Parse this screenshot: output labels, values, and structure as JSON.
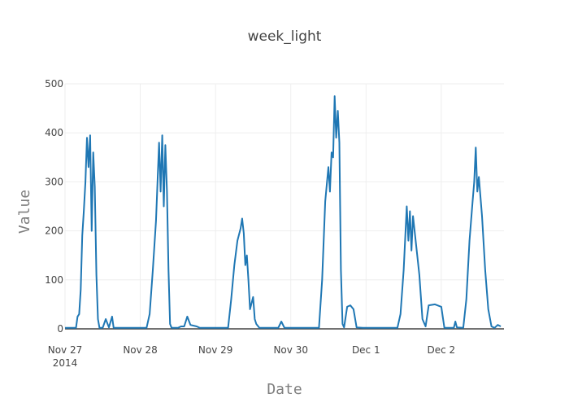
{
  "chart_data": {
    "type": "line",
    "title": "week_light",
    "xlabel": "Date",
    "ylabel": "Value",
    "x_range": [
      "2014-11-27",
      "2014-12-02T20:00"
    ],
    "ylim": [
      0,
      500
    ],
    "x_ticks": [
      {
        "label": "Nov 27",
        "sublabel": "2014",
        "date": "2014-11-27"
      },
      {
        "label": "Nov 28",
        "date": "2014-11-28"
      },
      {
        "label": "Nov 29",
        "date": "2014-11-29"
      },
      {
        "label": "Nov 30",
        "date": "2014-11-30"
      },
      {
        "label": "Dec 1",
        "date": "2014-12-01"
      },
      {
        "label": "Dec 2",
        "date": "2014-12-02"
      }
    ],
    "y_ticks": [
      0,
      100,
      200,
      300,
      400,
      500
    ],
    "grid": true,
    "series_color": "#1f77b4",
    "series": [
      {
        "name": "",
        "points": [
          [
            "2014-11-27T00:00",
            2
          ],
          [
            "2014-11-27T03:30",
            2
          ],
          [
            "2014-11-27T04:00",
            25
          ],
          [
            "2014-11-27T04:30",
            30
          ],
          [
            "2014-11-27T05:00",
            80
          ],
          [
            "2014-11-27T05:30",
            190
          ],
          [
            "2014-11-27T06:00",
            240
          ],
          [
            "2014-11-27T06:30",
            300
          ],
          [
            "2014-11-27T07:00",
            390
          ],
          [
            "2014-11-27T07:30",
            330
          ],
          [
            "2014-11-27T08:00",
            395
          ],
          [
            "2014-11-27T08:30",
            200
          ],
          [
            "2014-11-27T09:00",
            360
          ],
          [
            "2014-11-27T09:30",
            290
          ],
          [
            "2014-11-27T10:00",
            110
          ],
          [
            "2014-11-27T10:30",
            20
          ],
          [
            "2014-11-27T11:00",
            2
          ],
          [
            "2014-11-27T12:00",
            2
          ],
          [
            "2014-11-27T13:00",
            20
          ],
          [
            "2014-11-27T14:00",
            3
          ],
          [
            "2014-11-27T15:00",
            25
          ],
          [
            "2014-11-27T15:30",
            2
          ],
          [
            "2014-11-28T02:00",
            2
          ],
          [
            "2014-11-28T03:00",
            30
          ],
          [
            "2014-11-28T04:00",
            120
          ],
          [
            "2014-11-28T05:00",
            220
          ],
          [
            "2014-11-28T06:00",
            380
          ],
          [
            "2014-11-28T06:30",
            280
          ],
          [
            "2014-11-28T07:00",
            395
          ],
          [
            "2014-11-28T07:30",
            250
          ],
          [
            "2014-11-28T08:00",
            375
          ],
          [
            "2014-11-28T08:30",
            280
          ],
          [
            "2014-11-28T09:00",
            120
          ],
          [
            "2014-11-28T09:30",
            10
          ],
          [
            "2014-11-28T10:00",
            2
          ],
          [
            "2014-11-28T12:00",
            2
          ],
          [
            "2014-11-28T13:00",
            5
          ],
          [
            "2014-11-28T14:00",
            5
          ],
          [
            "2014-11-28T15:00",
            25
          ],
          [
            "2014-11-28T16:00",
            8
          ],
          [
            "2014-11-28T18:00",
            5
          ],
          [
            "2014-11-28T19:00",
            2
          ],
          [
            "2014-11-29T04:00",
            2
          ],
          [
            "2014-11-29T05:00",
            60
          ],
          [
            "2014-11-29T06:00",
            130
          ],
          [
            "2014-11-29T07:00",
            180
          ],
          [
            "2014-11-29T08:00",
            205
          ],
          [
            "2014-11-29T08:30",
            225
          ],
          [
            "2014-11-29T09:00",
            195
          ],
          [
            "2014-11-29T09:30",
            130
          ],
          [
            "2014-11-29T10:00",
            150
          ],
          [
            "2014-11-29T10:30",
            100
          ],
          [
            "2014-11-29T11:00",
            40
          ],
          [
            "2014-11-29T12:00",
            65
          ],
          [
            "2014-11-29T12:30",
            20
          ],
          [
            "2014-11-29T13:00",
            10
          ],
          [
            "2014-11-29T14:00",
            2
          ],
          [
            "2014-11-29T15:00",
            2
          ],
          [
            "2014-11-29T20:00",
            2
          ],
          [
            "2014-11-29T21:00",
            15
          ],
          [
            "2014-11-29T22:00",
            2
          ],
          [
            "2014-11-30T09:00",
            2
          ],
          [
            "2014-11-30T10:00",
            100
          ],
          [
            "2014-11-30T11:00",
            260
          ],
          [
            "2014-11-30T12:00",
            330
          ],
          [
            "2014-11-30T12:30",
            280
          ],
          [
            "2014-11-30T13:00",
            360
          ],
          [
            "2014-11-30T13:30",
            350
          ],
          [
            "2014-11-30T14:00",
            475
          ],
          [
            "2014-11-30T14:30",
            390
          ],
          [
            "2014-11-30T15:00",
            445
          ],
          [
            "2014-11-30T15:30",
            380
          ],
          [
            "2014-11-30T16:00",
            120
          ],
          [
            "2014-11-30T16:30",
            10
          ],
          [
            "2014-11-30T17:00",
            3
          ],
          [
            "2014-11-30T18:00",
            45
          ],
          [
            "2014-11-30T19:00",
            48
          ],
          [
            "2014-11-30T20:00",
            40
          ],
          [
            "2014-11-30T21:00",
            3
          ],
          [
            "2014-11-30T23:00",
            2
          ],
          [
            "2014-12-01T10:00",
            2
          ],
          [
            "2014-12-01T11:00",
            30
          ],
          [
            "2014-12-01T12:00",
            120
          ],
          [
            "2014-12-01T13:00",
            250
          ],
          [
            "2014-12-01T13:30",
            180
          ],
          [
            "2014-12-01T14:00",
            240
          ],
          [
            "2014-12-01T14:30",
            160
          ],
          [
            "2014-12-01T15:00",
            230
          ],
          [
            "2014-12-01T16:00",
            170
          ],
          [
            "2014-12-01T17:00",
            110
          ],
          [
            "2014-12-01T18:00",
            20
          ],
          [
            "2014-12-01T19:00",
            5
          ],
          [
            "2014-12-01T20:00",
            48
          ],
          [
            "2014-12-01T22:00",
            50
          ],
          [
            "2014-12-02T00:00",
            45
          ],
          [
            "2014-12-02T01:00",
            2
          ],
          [
            "2014-12-02T04:00",
            2
          ],
          [
            "2014-12-02T04:30",
            15
          ],
          [
            "2014-12-02T05:00",
            3
          ],
          [
            "2014-12-02T07:00",
            2
          ],
          [
            "2014-12-02T08:00",
            60
          ],
          [
            "2014-12-02T09:00",
            180
          ],
          [
            "2014-12-02T10:00",
            260
          ],
          [
            "2014-12-02T10:30",
            300
          ],
          [
            "2014-12-02T11:00",
            370
          ],
          [
            "2014-12-02T11:30",
            280
          ],
          [
            "2014-12-02T12:00",
            310
          ],
          [
            "2014-12-02T13:00",
            230
          ],
          [
            "2014-12-02T14:00",
            120
          ],
          [
            "2014-12-02T15:00",
            40
          ],
          [
            "2014-12-02T16:00",
            5
          ],
          [
            "2014-12-02T17:00",
            2
          ],
          [
            "2014-12-02T18:00",
            8
          ],
          [
            "2014-12-02T19:00",
            5
          ]
        ]
      }
    ]
  }
}
